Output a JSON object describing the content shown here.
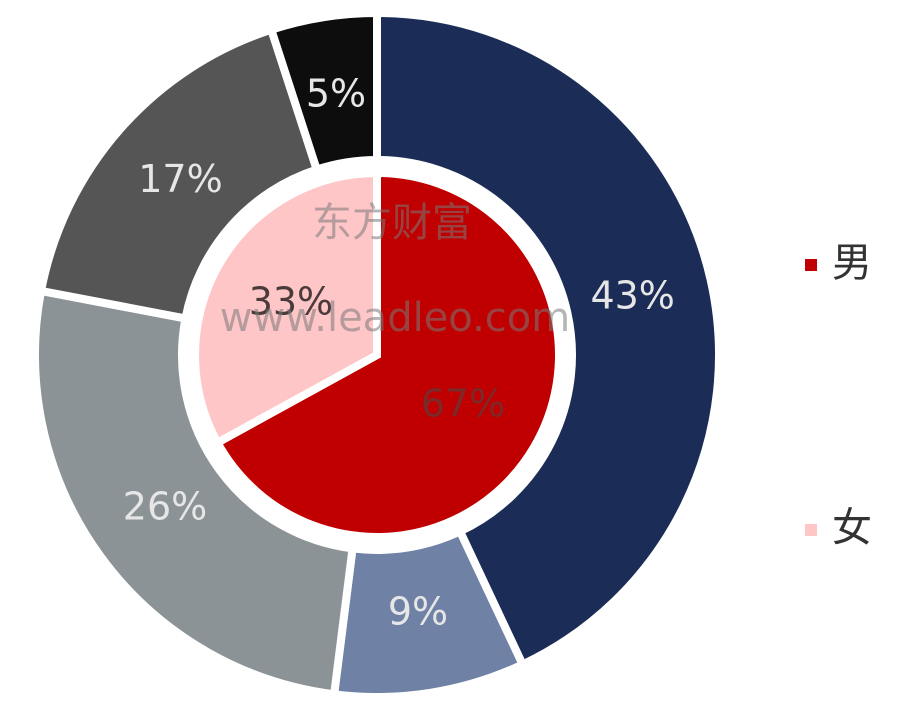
{
  "chart_data": [
    {
      "type": "pie",
      "categories": [
        "男",
        "女"
      ],
      "values": [
        67,
        33
      ],
      "value_labels": [
        "67%",
        "33%"
      ],
      "colors": [
        "#c00000",
        "#ffc6c8"
      ],
      "label_colors": [
        "#7a2a2a",
        "#4a3a3a"
      ],
      "legend": "right"
    },
    {
      "type": "donut",
      "categories": [
        null,
        null,
        null,
        null,
        null
      ],
      "values": [
        43,
        9,
        26,
        17,
        5
      ],
      "value_labels": [
        "43%",
        "9%",
        "26%",
        "17%",
        "5%"
      ],
      "colors": [
        "#1b2d57",
        "#6f82a5",
        "#8c9396",
        "#555555",
        "#0d0d0d"
      ],
      "label_colors": [
        "#e6e6e6",
        "#e6e6e6",
        "#e6e6e6",
        "#e6e6e6",
        "#e6e6e6"
      ]
    }
  ],
  "watermark": [
    "东方财富",
    "www.leadleo.com"
  ]
}
